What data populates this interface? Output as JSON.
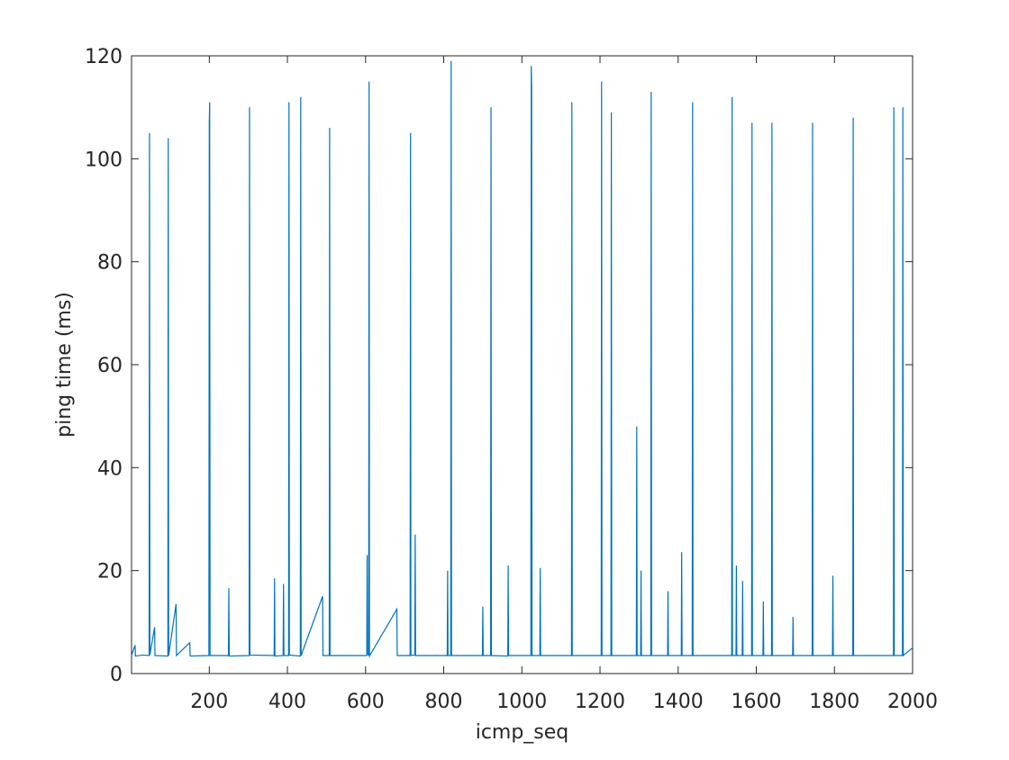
{
  "chart_data": {
    "type": "line",
    "x_label": "icmp_seq",
    "y_label": "ping time (ms)",
    "xlim": [
      1,
      2000
    ],
    "ylim": [
      0,
      120
    ],
    "xticks": [
      200,
      400,
      600,
      800,
      1000,
      1200,
      1400,
      1600,
      1800,
      2000
    ],
    "yticks": [
      0,
      20,
      40,
      60,
      80,
      100,
      120
    ],
    "grid": false,
    "x": [
      1,
      10,
      11,
      30,
      46,
      47,
      48,
      60,
      61,
      94,
      95,
      96,
      115,
      116,
      150,
      151,
      199,
      200,
      201,
      202,
      249,
      250,
      251,
      302,
      303,
      304,
      366,
      367,
      368,
      389,
      390,
      391,
      403,
      404,
      405,
      433,
      434,
      435,
      490,
      491,
      507,
      508,
      509,
      603,
      604,
      605,
      608,
      609,
      610,
      680,
      681,
      714,
      715,
      716,
      726,
      727,
      728,
      809,
      810,
      811,
      818,
      819,
      820,
      899,
      900,
      901,
      920,
      921,
      922,
      964,
      965,
      966,
      1023,
      1024,
      1025,
      1026,
      1046,
      1047,
      1048,
      1127,
      1128,
      1129,
      1203,
      1204,
      1205,
      1228,
      1229,
      1230,
      1293,
      1294,
      1295,
      1304,
      1305,
      1306,
      1330,
      1331,
      1332,
      1373,
      1374,
      1375,
      1408,
      1409,
      1410,
      1436,
      1437,
      1438,
      1537,
      1538,
      1539,
      1548,
      1549,
      1550,
      1564,
      1565,
      1566,
      1588,
      1589,
      1590,
      1617,
      1618,
      1619,
      1639,
      1640,
      1641,
      1693,
      1694,
      1695,
      1743,
      1744,
      1745,
      1795,
      1796,
      1797,
      1847,
      1848,
      1849,
      1951,
      1952,
      1953,
      1974,
      1975,
      1976,
      2000
    ],
    "series": [
      {
        "name": "ping",
        "color": "#0072bd",
        "values": [
          3.5,
          5.5,
          3.4,
          3.6,
          3.5,
          105,
          3.6,
          9,
          3.5,
          3.4,
          104,
          3.5,
          13.5,
          3.5,
          6,
          3.4,
          3.5,
          107,
          111,
          3.5,
          3.5,
          16.6,
          3.4,
          3.5,
          110,
          3.6,
          3.5,
          18.5,
          3.4,
          3.5,
          17.4,
          3.5,
          3.5,
          111,
          3.6,
          3.4,
          112,
          3.5,
          15,
          3.5,
          3.5,
          106,
          3.5,
          3.5,
          23,
          4,
          3.5,
          115,
          3.4,
          12.5,
          3.5,
          3.5,
          105,
          3.5,
          3.6,
          27,
          3.5,
          3.5,
          20,
          3.5,
          3.5,
          119,
          3.5,
          3.5,
          13,
          3.5,
          3.5,
          110,
          3.5,
          3.4,
          21,
          3.5,
          3.5,
          118,
          114,
          3.5,
          3.5,
          20.5,
          3.5,
          3.5,
          111,
          3.5,
          3.5,
          115,
          3.5,
          3.5,
          109,
          3.5,
          3.5,
          48,
          3.5,
          3.5,
          20,
          3.5,
          3.5,
          113,
          3.5,
          3.5,
          16,
          3.5,
          3.5,
          23.6,
          3.5,
          3.5,
          111,
          3.5,
          3.5,
          112,
          3.5,
          3.5,
          21,
          3.5,
          3.5,
          18,
          3.5,
          3.5,
          107,
          3.5,
          3.5,
          14,
          3.5,
          3.5,
          107,
          3.5,
          3.5,
          11,
          3.5,
          3.5,
          107,
          3.5,
          3.5,
          19,
          3.5,
          3.5,
          108,
          3.5,
          3.5,
          110,
          3.5,
          3.5,
          110,
          3.5,
          5
        ]
      }
    ]
  }
}
